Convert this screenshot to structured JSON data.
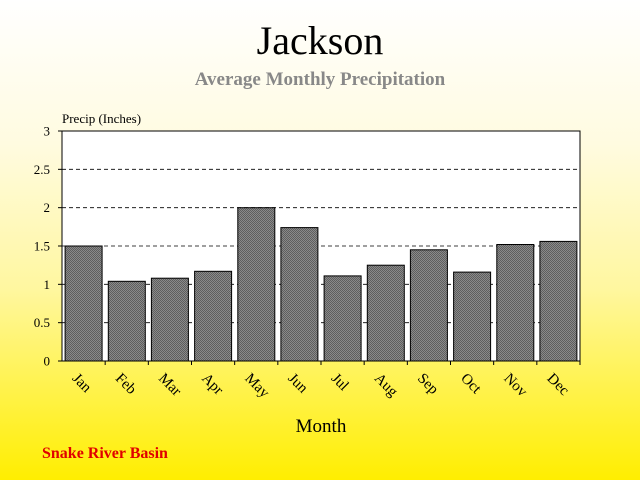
{
  "title": "Jackson",
  "subtitle": "Average Monthly Precipitation",
  "footer": "Snake River Basin",
  "colors": {
    "bar_fill": "#7a7a7a",
    "footer": "#e00000",
    "subtitle": "#888888"
  },
  "chart_data": {
    "type": "bar",
    "title": "Jackson",
    "subtitle": "Average Monthly Precipitation",
    "xlabel": "Month",
    "ylabel": "Precip (Inches)",
    "categories": [
      "Jan",
      "Feb",
      "Mar",
      "Apr",
      "May",
      "Jun",
      "Jul",
      "Aug",
      "Sep",
      "Oct",
      "Nov",
      "Dec"
    ],
    "values": [
      1.5,
      1.04,
      1.08,
      1.17,
      2.0,
      1.74,
      1.11,
      1.25,
      1.45,
      1.16,
      1.52,
      1.56
    ],
    "ylim": [
      0,
      3
    ],
    "yticks": [
      "0",
      "0.5",
      "1",
      "1.5",
      "2",
      "2.5",
      "3"
    ],
    "grid": "dashed horizontal",
    "legend": "none"
  }
}
